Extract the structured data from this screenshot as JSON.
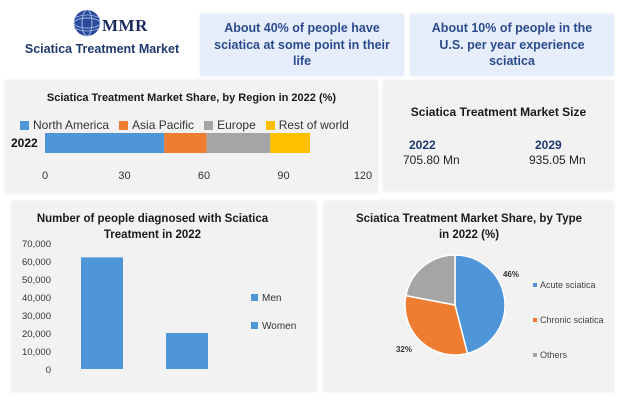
{
  "header": {
    "logo_text": "MMR",
    "site_title": "Sciatica Treatment Market",
    "fact_1": "About 40% of people have sciatica at some point in their life",
    "fact_2": "About 10% of people in the U.S. per year experience sciatica"
  },
  "market_size": {
    "title": "Sciatica Treatment Market Size",
    "year_1": "2022",
    "value_1": "705.80 Mn",
    "year_2": "2029",
    "value_2": "935.05 Mn"
  },
  "chart_data": [
    {
      "type": "bar",
      "orientation": "horizontal-stacked",
      "title": "Sciatica Treatment Market Share, by Region in 2022 (%)",
      "categories": [
        "2022"
      ],
      "series": [
        {
          "name": "North America",
          "values": [
            45
          ],
          "color": "#4f96d8"
        },
        {
          "name": "Asia Pacific",
          "values": [
            16
          ],
          "color": "#ee7d31"
        },
        {
          "name": "Europe",
          "values": [
            24
          ],
          "color": "#a5a5a5"
        },
        {
          "name": "Rest of world",
          "values": [
            15
          ],
          "color": "#ffc000"
        }
      ],
      "xlim": [
        0,
        120
      ],
      "xticks": [
        "0",
        "30",
        "60",
        "90",
        "120"
      ],
      "legend": "top",
      "grid": false
    },
    {
      "type": "bar",
      "title": "Number of people diagnosed with Sciatica Treatment in 2022",
      "categories": [
        "Men",
        "Women"
      ],
      "values": [
        62000,
        20000
      ],
      "color": "#4f96d8",
      "ylim": [
        0,
        70000
      ],
      "yticks": [
        "0",
        "10,000",
        "20,000",
        "30,000",
        "40,000",
        "50,000",
        "60,000",
        "70,000"
      ],
      "legend": "right",
      "grid": false
    },
    {
      "type": "pie",
      "title": "Sciatica Treatment Market Share, by Type in 2022 (%)",
      "categories": [
        "Acute sciatica",
        "Chronic sciatica",
        "Others"
      ],
      "values": [
        46,
        32,
        22
      ],
      "data_labels": [
        "46%",
        "32%",
        ""
      ],
      "colors": [
        "#4f96d8",
        "#ee7d31",
        "#a5a5a5"
      ],
      "legend": "right"
    }
  ]
}
